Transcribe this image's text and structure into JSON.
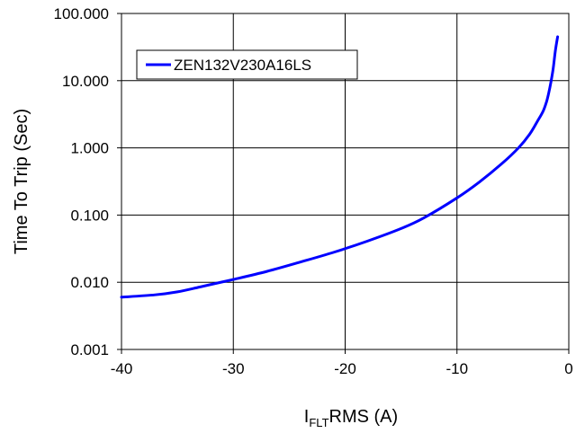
{
  "chart_data": {
    "type": "line",
    "xlabel": {
      "base": "I",
      "subscript": "FLT",
      "rest": "RMS (A)"
    },
    "ylabel": "Time To Trip (Sec)",
    "xlim": [
      -40,
      0
    ],
    "ylim": [
      0.001,
      100
    ],
    "y_scale": "log",
    "x_ticks": [
      -40,
      -30,
      -20,
      -10,
      0
    ],
    "x_tick_labels": [
      "-40",
      "-30",
      "-20",
      "-10",
      "0"
    ],
    "y_ticks": [
      0.001,
      0.01,
      0.1,
      1,
      10,
      100
    ],
    "y_tick_labels": [
      "0.001",
      "0.010",
      "0.100",
      "1.000",
      "10.000",
      "100.000"
    ],
    "grid": true,
    "legend_position": "top-left",
    "series": [
      {
        "name": "ZEN132V230A16LS",
        "color": "#0000ff",
        "x": [
          -40,
          -37,
          -35,
          -33,
          -31,
          -30,
          -27,
          -24,
          -21,
          -18,
          -15,
          -13,
          -10,
          -8,
          -6,
          -4.5,
          -3.5,
          -2.8,
          -2.3,
          -2,
          -1.8,
          -1.6,
          -1.4,
          -1.2,
          -1
        ],
        "y": [
          0.006,
          0.0065,
          0.0072,
          0.0085,
          0.0101,
          0.011,
          0.0145,
          0.02,
          0.028,
          0.041,
          0.063,
          0.09,
          0.18,
          0.31,
          0.58,
          1.0,
          1.6,
          2.5,
          3.5,
          4.8,
          6.5,
          9.5,
          15,
          28,
          45
        ]
      }
    ]
  }
}
